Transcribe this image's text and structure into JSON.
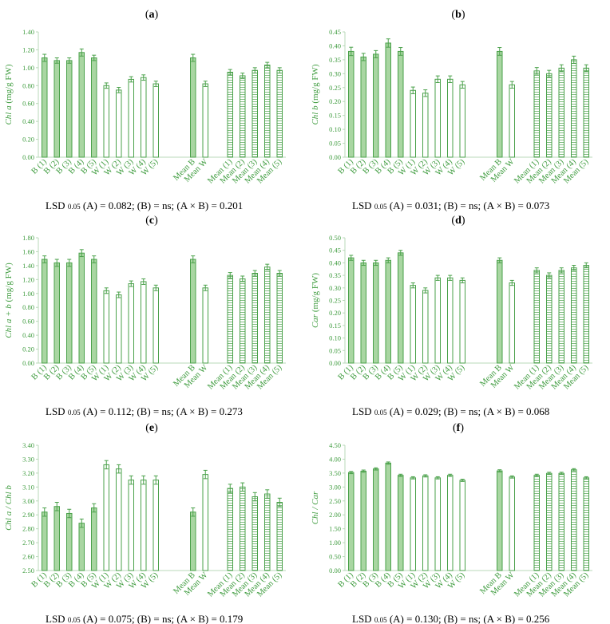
{
  "colors": {
    "axis": "#b9d9b9",
    "bar_stroke": "#4aa14a",
    "fill_B": "#a9d6a2",
    "fill_W": "#ffffff",
    "text_green": "#3f9c3f"
  },
  "categories": [
    "B (1)",
    "B (2)",
    "B (3)",
    "B (4)",
    "B (5)",
    "W (1)",
    "W (2)",
    "W (3)",
    "W (4)",
    "W (5)",
    "Mean B",
    "Mean W",
    "Mean (1)",
    "Mean (2)",
    "Mean (3)",
    "Mean (4)",
    "Mean (5)"
  ],
  "lsd_prefix": "LSD",
  "lsd_sub": "0.05",
  "chart_data": [
    {
      "type": "bar",
      "panel": "a",
      "ylabel": {
        "italic": "Chl a",
        "rest": " (mg/g FW)"
      },
      "ylim": [
        0,
        1.4
      ],
      "yticks": [
        "0.00",
        "0.20",
        "0.40",
        "0.60",
        "0.80",
        "1.00",
        "1.20",
        "1.40"
      ],
      "values": [
        1.11,
        1.08,
        1.08,
        1.17,
        1.11,
        0.8,
        0.75,
        0.87,
        0.89,
        0.82,
        1.11,
        0.82,
        0.95,
        0.91,
        0.97,
        1.03,
        0.97
      ],
      "errors": [
        0.04,
        0.03,
        0.03,
        0.04,
        0.03,
        0.03,
        0.03,
        0.03,
        0.03,
        0.03,
        0.04,
        0.03,
        0.03,
        0.03,
        0.03,
        0.03,
        0.03
      ],
      "lsd": "(A) = 0.082; (B) = ns; (A × B) = 0.201"
    },
    {
      "type": "bar",
      "panel": "b",
      "ylabel": {
        "italic": "Chl b",
        "rest": " (mg/g FW)"
      },
      "ylim": [
        0,
        0.45
      ],
      "yticks": [
        "0.00",
        "0.05",
        "0.10",
        "0.15",
        "0.20",
        "0.25",
        "0.30",
        "0.35",
        "0.40",
        "0.45"
      ],
      "values": [
        0.38,
        0.36,
        0.37,
        0.41,
        0.38,
        0.24,
        0.23,
        0.28,
        0.28,
        0.26,
        0.38,
        0.26,
        0.31,
        0.3,
        0.32,
        0.35,
        0.32
      ],
      "errors": [
        0.015,
        0.013,
        0.013,
        0.015,
        0.014,
        0.012,
        0.012,
        0.012,
        0.012,
        0.012,
        0.014,
        0.012,
        0.012,
        0.012,
        0.012,
        0.013,
        0.012
      ],
      "lsd": "(A) = 0.031; (B) = ns; (A × B) = 0.073"
    },
    {
      "type": "bar",
      "panel": "c",
      "ylabel": {
        "italic": "Chl a + b",
        "rest": " (mg/g FW)"
      },
      "ylim": [
        0,
        1.8
      ],
      "yticks": [
        "0.00",
        "0.20",
        "0.40",
        "0.60",
        "0.80",
        "1.00",
        "1.20",
        "1.40",
        "1.60",
        "1.80"
      ],
      "values": [
        1.49,
        1.44,
        1.44,
        1.58,
        1.49,
        1.04,
        0.98,
        1.14,
        1.17,
        1.08,
        1.49,
        1.08,
        1.26,
        1.21,
        1.29,
        1.38,
        1.29
      ],
      "errors": [
        0.05,
        0.05,
        0.05,
        0.05,
        0.05,
        0.04,
        0.04,
        0.04,
        0.04,
        0.04,
        0.05,
        0.04,
        0.04,
        0.04,
        0.04,
        0.04,
        0.04
      ],
      "lsd": "(A) = 0.112; (B) = ns; (A × B) = 0.273"
    },
    {
      "type": "bar",
      "panel": "d",
      "ylabel": {
        "italic": "Car",
        "rest": " (mg/g  FW)"
      },
      "ylim": [
        0,
        0.5
      ],
      "yticks": [
        "0.00",
        "0.05",
        "0.10",
        "0.15",
        "0.20",
        "0.25",
        "0.30",
        "0.35",
        "0.40",
        "0.45",
        "0.50"
      ],
      "values": [
        0.42,
        0.4,
        0.4,
        0.41,
        0.44,
        0.31,
        0.29,
        0.34,
        0.34,
        0.33,
        0.41,
        0.32,
        0.37,
        0.35,
        0.37,
        0.38,
        0.39
      ],
      "errors": [
        0.01,
        0.01,
        0.01,
        0.01,
        0.01,
        0.01,
        0.01,
        0.01,
        0.01,
        0.01,
        0.01,
        0.01,
        0.01,
        0.01,
        0.01,
        0.01,
        0.01
      ],
      "lsd": "(A) = 0.029; (B) = ns; (A × B) = 0.068"
    },
    {
      "type": "bar",
      "panel": "e",
      "ylabel": {
        "italic": "Chl a / Chl b",
        "rest": ""
      },
      "ylim": [
        2.5,
        3.4
      ],
      "yticks": [
        "2.50",
        "2.60",
        "2.70",
        "2.80",
        "2.90",
        "3.00",
        "3.10",
        "3.20",
        "3.30",
        "3.40"
      ],
      "values": [
        2.92,
        2.96,
        2.91,
        2.84,
        2.95,
        3.26,
        3.23,
        3.15,
        3.15,
        3.15,
        2.92,
        3.19,
        3.09,
        3.1,
        3.03,
        3.05,
        2.99
      ],
      "errors": [
        0.03,
        0.03,
        0.03,
        0.03,
        0.03,
        0.03,
        0.03,
        0.03,
        0.03,
        0.03,
        0.03,
        0.03,
        0.03,
        0.03,
        0.03,
        0.03,
        0.03
      ],
      "lsd": "(A) = 0.075; (B) = ns; (A × B) = 0.179"
    },
    {
      "type": "bar",
      "panel": "f",
      "ylabel": {
        "italic": "Chl / Car",
        "rest": ""
      },
      "ylim": [
        0,
        4.5
      ],
      "yticks": [
        "0.00",
        "0.50",
        "1.00",
        "1.50",
        "2.00",
        "2.50",
        "3.00",
        "3.50",
        "4.00",
        "4.50"
      ],
      "values": [
        3.52,
        3.57,
        3.65,
        3.86,
        3.42,
        3.33,
        3.4,
        3.33,
        3.42,
        3.24,
        3.58,
        3.36,
        3.42,
        3.49,
        3.49,
        3.62,
        3.33
      ],
      "errors": [
        0.04,
        0.04,
        0.04,
        0.04,
        0.04,
        0.04,
        0.04,
        0.04,
        0.04,
        0.04,
        0.04,
        0.04,
        0.04,
        0.04,
        0.04,
        0.04,
        0.04
      ],
      "lsd": "(A) = 0.130; (B) = ns; (A × B) = 0.256"
    }
  ]
}
